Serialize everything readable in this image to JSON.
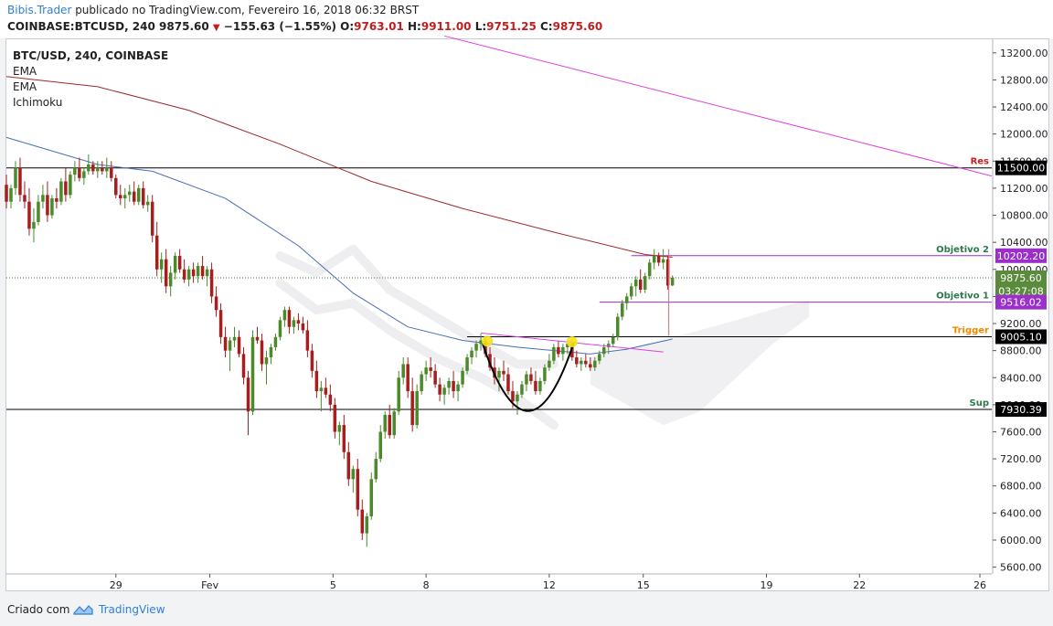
{
  "header": {
    "author": "Bibis.Trader",
    "published_text": " publicado no TradingView.com, Fevereiro 16, 2018 06:32 BRST",
    "symbol_line": "COINBASE:BTCUSD, 240",
    "last": "9875.60",
    "change": "−155.63 (−1.55%)",
    "o_label": "O:",
    "o": "9763.01",
    "h_label": "H:",
    "h": "9911.00",
    "l_label": "L:",
    "l": "9751.25",
    "c_label": "C:",
    "c": "9875.60"
  },
  "legend": {
    "symbol": "BTC/USD, 240, COINBASE",
    "studies": [
      "EMA",
      "EMA",
      "Ichimoku"
    ]
  },
  "footer": {
    "made_by": "Criado com",
    "brand": "TradingView"
  },
  "chart_data": {
    "type": "candlestick",
    "x_ticks": [
      {
        "label": "29",
        "t": 120
      },
      {
        "label": "Fev",
        "t": 223
      },
      {
        "label": "5",
        "t": 358
      },
      {
        "label": "8",
        "t": 460
      },
      {
        "label": "12",
        "t": 595
      },
      {
        "label": "15",
        "t": 698
      },
      {
        "label": "19",
        "t": 833
      },
      {
        "label": "22",
        "t": 935
      },
      {
        "label": "26",
        "t": 1067
      }
    ],
    "y_ticks": [
      13200,
      12800,
      12400,
      12000,
      11600,
      11200,
      10800,
      10400,
      10000,
      9600,
      9200,
      8800,
      8400,
      8000,
      7600,
      7200,
      6800,
      6400,
      6000,
      5600
    ],
    "y_range": [
      5500,
      13400
    ],
    "x_range": [
      0,
      1080
    ],
    "price_badges": [
      {
        "label": "11500.00",
        "value": 11500,
        "color": "#000000"
      },
      {
        "label": "10202.20",
        "value": 10202.2,
        "color": "#9b2fc9"
      },
      {
        "label": "9875.60",
        "value": 9875.6,
        "color": "#5a8a3c"
      },
      {
        "label": "03:27:08",
        "value": 9680,
        "color": "#5a8a3c"
      },
      {
        "label": "9516.02",
        "value": 9516.02,
        "color": "#9b2fc9"
      },
      {
        "label": "9005.10",
        "value": 9005.1,
        "color": "#000000"
      },
      {
        "label": "7930.39",
        "value": 7930.39,
        "color": "#000000"
      }
    ],
    "levels": [
      {
        "name": "Res",
        "value": 11500,
        "color": "#000000",
        "label_color": "#c21e1e",
        "from": 0
      },
      {
        "name": "Objetivo 2",
        "value": 10202.2,
        "color": "#9b2fc9",
        "label_color": "#2b7a4b",
        "from": 685
      },
      {
        "name": "Objetivo 1",
        "value": 9516.02,
        "color": "#9b2fc9",
        "label_color": "#2b7a4b",
        "from": 650
      },
      {
        "name": "Trigger",
        "value": 9005.1,
        "color": "#000000",
        "label_color": "#e68a00",
        "from": 505
      },
      {
        "name": "Sup",
        "value": 7930.39,
        "color": "#000000",
        "label_color": "#2b7a4b",
        "from": 0
      }
    ],
    "current_price": 9875.6,
    "trendline": {
      "from": [
        480,
        13450
      ],
      "to": [
        1080,
        11380
      ],
      "color": "#e040e0"
    },
    "ema_slow": [
      [
        0,
        12850
      ],
      [
        100,
        12700
      ],
      [
        200,
        12350
      ],
      [
        300,
        11850
      ],
      [
        400,
        11300
      ],
      [
        500,
        10900
      ],
      [
        600,
        10550
      ],
      [
        700,
        10220
      ],
      [
        730,
        10180
      ]
    ],
    "ema_fast": [
      [
        0,
        11950
      ],
      [
        100,
        11550
      ],
      [
        160,
        11450
      ],
      [
        240,
        11050
      ],
      [
        320,
        10350
      ],
      [
        380,
        9650
      ],
      [
        440,
        9150
      ],
      [
        500,
        8950
      ],
      [
        560,
        8850
      ],
      [
        600,
        8800
      ],
      [
        640,
        8750
      ],
      [
        680,
        8820
      ],
      [
        730,
        8970
      ]
    ],
    "cloud": [
      [
        [
          300,
          10200
        ],
        [
          340,
          9950
        ],
        [
          380,
          10300
        ],
        [
          420,
          9700
        ],
        [
          470,
          9300
        ],
        [
          520,
          8900
        ],
        [
          560,
          8600
        ],
        [
          600,
          8600
        ]
      ],
      [
        [
          300,
          9800
        ],
        [
          340,
          9400
        ],
        [
          380,
          9500
        ],
        [
          420,
          9100
        ],
        [
          470,
          8700
        ],
        [
          520,
          8400
        ],
        [
          560,
          8100
        ],
        [
          600,
          7700
        ]
      ],
      [
        [
          640,
          8700
        ],
        [
          700,
          8900
        ],
        [
          760,
          9100
        ],
        [
          800,
          9250
        ],
        [
          850,
          9450
        ],
        [
          880,
          9550
        ],
        [
          880,
          9300
        ],
        [
          840,
          8900
        ],
        [
          800,
          8400
        ],
        [
          760,
          7900
        ],
        [
          720,
          7700
        ],
        [
          680,
          8000
        ],
        [
          640,
          8300
        ]
      ]
    ],
    "cup": {
      "left": [
        522,
        8900
      ],
      "bottom": [
        572,
        7850
      ],
      "right": [
        622,
        8920
      ],
      "color": "#000000"
    },
    "wedge_line": {
      "from": [
        520,
        9060
      ],
      "to": [
        720,
        8780
      ],
      "color": "#e040e0"
    },
    "markers": [
      {
        "t": 527,
        "v": 8940,
        "color": "#f5e31a"
      },
      {
        "t": 620,
        "v": 8930,
        "color": "#f5e31a"
      }
    ],
    "vertical_line": {
      "t": 726,
      "from": 10300,
      "to": 9020,
      "color": "#e06a6a"
    },
    "candles": [
      [
        0,
        11250,
        11400,
        10900,
        11000
      ],
      [
        5,
        11000,
        11250,
        10900,
        11200
      ],
      [
        10,
        11200,
        11600,
        11100,
        11500
      ],
      [
        15,
        11500,
        11650,
        11000,
        11100
      ],
      [
        20,
        11100,
        11300,
        10900,
        11000
      ],
      [
        25,
        11000,
        11200,
        10500,
        10600
      ],
      [
        30,
        10600,
        10900,
        10400,
        10700
      ],
      [
        35,
        10700,
        11100,
        10650,
        11000
      ],
      [
        40,
        11000,
        11250,
        10900,
        11100
      ],
      [
        45,
        11100,
        11300,
        10700,
        10800
      ],
      [
        50,
        10800,
        11100,
        10750,
        11050
      ],
      [
        55,
        11050,
        11200,
        10900,
        11000
      ],
      [
        60,
        11000,
        11350,
        10950,
        11300
      ],
      [
        65,
        11300,
        11500,
        11000,
        11100
      ],
      [
        70,
        11100,
        11450,
        11050,
        11400
      ],
      [
        75,
        11400,
        11600,
        11300,
        11500
      ],
      [
        80,
        11500,
        11650,
        11300,
        11350
      ],
      [
        85,
        11350,
        11500,
        11250,
        11450
      ],
      [
        90,
        11450,
        11700,
        11400,
        11550
      ],
      [
        95,
        11550,
        11600,
        11400,
        11450
      ],
      [
        100,
        11450,
        11600,
        11350,
        11500
      ],
      [
        105,
        11500,
        11600,
        11400,
        11450
      ],
      [
        110,
        11450,
        11650,
        11350,
        11500
      ],
      [
        115,
        11500,
        11600,
        11300,
        11350
      ],
      [
        120,
        11350,
        11400,
        11050,
        11100
      ],
      [
        125,
        11100,
        11250,
        10950,
        11050
      ],
      [
        130,
        11050,
        11200,
        10900,
        11100
      ],
      [
        135,
        11100,
        11250,
        11000,
        11150
      ],
      [
        140,
        11150,
        11300,
        10950,
        11000
      ],
      [
        145,
        11000,
        11250,
        10950,
        11200
      ],
      [
        150,
        11200,
        11300,
        10900,
        10950
      ],
      [
        155,
        10950,
        11100,
        10850,
        11000
      ],
      [
        160,
        11000,
        11100,
        10400,
        10500
      ],
      [
        165,
        10500,
        10700,
        9900,
        10000
      ],
      [
        170,
        10000,
        10250,
        9800,
        10150
      ],
      [
        175,
        10150,
        10300,
        9650,
        9750
      ],
      [
        180,
        9750,
        10050,
        9600,
        9950
      ],
      [
        185,
        9950,
        10250,
        9850,
        10200
      ],
      [
        190,
        10200,
        10300,
        9950,
        10000
      ],
      [
        195,
        10000,
        10150,
        9800,
        9850
      ],
      [
        200,
        9850,
        10050,
        9750,
        10000
      ],
      [
        205,
        10000,
        10100,
        9800,
        9900
      ],
      [
        210,
        9900,
        10100,
        9800,
        10050
      ],
      [
        215,
        10050,
        10200,
        9850,
        9900
      ],
      [
        220,
        9900,
        10050,
        9750,
        10000
      ],
      [
        225,
        10000,
        10100,
        9500,
        9600
      ],
      [
        230,
        9600,
        9750,
        9300,
        9400
      ],
      [
        235,
        9400,
        9500,
        8900,
        9000
      ],
      [
        240,
        9000,
        9150,
        8700,
        8800
      ],
      [
        245,
        8800,
        9000,
        8500,
        8950
      ],
      [
        250,
        8950,
        9150,
        8850,
        9000
      ],
      [
        255,
        9000,
        9100,
        8700,
        8750
      ],
      [
        260,
        8750,
        8850,
        8300,
        8400
      ],
      [
        265,
        8400,
        8500,
        7550,
        7900
      ],
      [
        270,
        7900,
        9100,
        7850,
        9000
      ],
      [
        275,
        9000,
        9150,
        8900,
        8950
      ],
      [
        280,
        8950,
        9050,
        8500,
        8600
      ],
      [
        285,
        8600,
        8800,
        8300,
        8700
      ],
      [
        290,
        8700,
        8900,
        8600,
        8850
      ],
      [
        295,
        8850,
        9050,
        8800,
        9000
      ],
      [
        300,
        9000,
        9300,
        8950,
        9250
      ],
      [
        305,
        9250,
        9450,
        9150,
        9400
      ],
      [
        310,
        9400,
        9450,
        9050,
        9150
      ],
      [
        315,
        9150,
        9300,
        9050,
        9250
      ],
      [
        320,
        9250,
        9350,
        9100,
        9200
      ],
      [
        325,
        9200,
        9300,
        9050,
        9100
      ],
      [
        330,
        9100,
        9250,
        8700,
        8800
      ],
      [
        335,
        8800,
        8900,
        8400,
        8500
      ],
      [
        340,
        8500,
        8650,
        8100,
        8200
      ],
      [
        345,
        8200,
        8350,
        7900,
        8250
      ],
      [
        350,
        8250,
        8400,
        8100,
        8150
      ],
      [
        355,
        8150,
        8300,
        7900,
        8000
      ],
      [
        360,
        8000,
        8100,
        7500,
        7600
      ],
      [
        365,
        7600,
        7750,
        7400,
        7700
      ],
      [
        370,
        7700,
        7850,
        7200,
        7300
      ],
      [
        375,
        7300,
        7450,
        6800,
        6900
      ],
      [
        380,
        6900,
        7100,
        6700,
        7050
      ],
      [
        385,
        7050,
        7200,
        6350,
        6450
      ],
      [
        390,
        6450,
        6600,
        6000,
        6100
      ],
      [
        395,
        6100,
        6400,
        5900,
        6350
      ],
      [
        400,
        6350,
        7000,
        6300,
        6900
      ],
      [
        405,
        6900,
        7300,
        6850,
        7200
      ],
      [
        410,
        7200,
        7700,
        7150,
        7600
      ],
      [
        415,
        7600,
        7900,
        7500,
        7850
      ],
      [
        420,
        7850,
        8000,
        7500,
        7550
      ],
      [
        425,
        7550,
        7950,
        7500,
        7900
      ],
      [
        430,
        7900,
        8500,
        7850,
        8400
      ],
      [
        435,
        8400,
        8700,
        8300,
        8600
      ],
      [
        440,
        8600,
        8700,
        8100,
        8200
      ],
      [
        445,
        8200,
        8400,
        7600,
        7700
      ],
      [
        450,
        7700,
        8300,
        7650,
        8200
      ],
      [
        455,
        8200,
        8500,
        8150,
        8450
      ],
      [
        460,
        8450,
        8650,
        8350,
        8550
      ],
      [
        465,
        8550,
        8700,
        8400,
        8500
      ],
      [
        470,
        8500,
        8600,
        8250,
        8300
      ],
      [
        475,
        8300,
        8400,
        8050,
        8150
      ],
      [
        480,
        8150,
        8300,
        8000,
        8250
      ],
      [
        485,
        8250,
        8400,
        8150,
        8350
      ],
      [
        490,
        8350,
        8500,
        8100,
        8200
      ],
      [
        495,
        8200,
        8350,
        8050,
        8300
      ],
      [
        500,
        8300,
        8550,
        8250,
        8500
      ],
      [
        505,
        8500,
        8750,
        8450,
        8700
      ],
      [
        510,
        8700,
        8850,
        8600,
        8800
      ],
      [
        515,
        8800,
        8950,
        8700,
        8900
      ],
      [
        520,
        8900,
        9050,
        8800,
        8950
      ],
      [
        525,
        8950,
        9000,
        8700,
        8750
      ],
      [
        530,
        8750,
        8850,
        8500,
        8550
      ],
      [
        535,
        8550,
        8700,
        8300,
        8400
      ],
      [
        540,
        8400,
        8550,
        8200,
        8500
      ],
      [
        545,
        8500,
        8650,
        8350,
        8450
      ],
      [
        550,
        8450,
        8550,
        8150,
        8200
      ],
      [
        555,
        8200,
        8350,
        7950,
        8050
      ],
      [
        560,
        8050,
        8200,
        7850,
        8150
      ],
      [
        565,
        8150,
        8350,
        8100,
        8300
      ],
      [
        570,
        8300,
        8500,
        8200,
        8450
      ],
      [
        575,
        8450,
        8550,
        8300,
        8350
      ],
      [
        580,
        8350,
        8500,
        8150,
        8200
      ],
      [
        585,
        8200,
        8400,
        8150,
        8350
      ],
      [
        590,
        8350,
        8600,
        8300,
        8550
      ],
      [
        595,
        8550,
        8750,
        8500,
        8650
      ],
      [
        600,
        8650,
        8900,
        8600,
        8850
      ],
      [
        605,
        8850,
        8950,
        8700,
        8750
      ],
      [
        610,
        8750,
        8900,
        8650,
        8850
      ],
      [
        615,
        8850,
        8960,
        8750,
        8900
      ],
      [
        620,
        8900,
        8950,
        8650,
        8700
      ],
      [
        625,
        8700,
        8800,
        8550,
        8600
      ],
      [
        630,
        8600,
        8700,
        8500,
        8650
      ],
      [
        635,
        8650,
        8750,
        8550,
        8600
      ],
      [
        640,
        8600,
        8700,
        8500,
        8550
      ],
      [
        645,
        8550,
        8700,
        8500,
        8650
      ],
      [
        650,
        8650,
        8800,
        8600,
        8750
      ],
      [
        655,
        8750,
        8900,
        8700,
        8850
      ],
      [
        660,
        8850,
        8950,
        8750,
        8900
      ],
      [
        665,
        8900,
        9050,
        8850,
        9000
      ],
      [
        670,
        9000,
        9350,
        8950,
        9300
      ],
      [
        675,
        9300,
        9550,
        9250,
        9500
      ],
      [
        680,
        9500,
        9650,
        9400,
        9600
      ],
      [
        685,
        9600,
        9800,
        9550,
        9750
      ],
      [
        690,
        9750,
        9900,
        9600,
        9850
      ],
      [
        695,
        9850,
        10000,
        9650,
        9700
      ],
      [
        700,
        9700,
        9950,
        9650,
        9900
      ],
      [
        705,
        9900,
        10150,
        9850,
        10100
      ],
      [
        710,
        10100,
        10300,
        10000,
        10200
      ],
      [
        715,
        10200,
        10250,
        10050,
        10100
      ],
      [
        720,
        10100,
        10300,
        10000,
        10150
      ],
      [
        725,
        10150,
        10200,
        9700,
        9760
      ],
      [
        730,
        9763.01,
        9911,
        9751.25,
        9875.6
      ]
    ]
  }
}
